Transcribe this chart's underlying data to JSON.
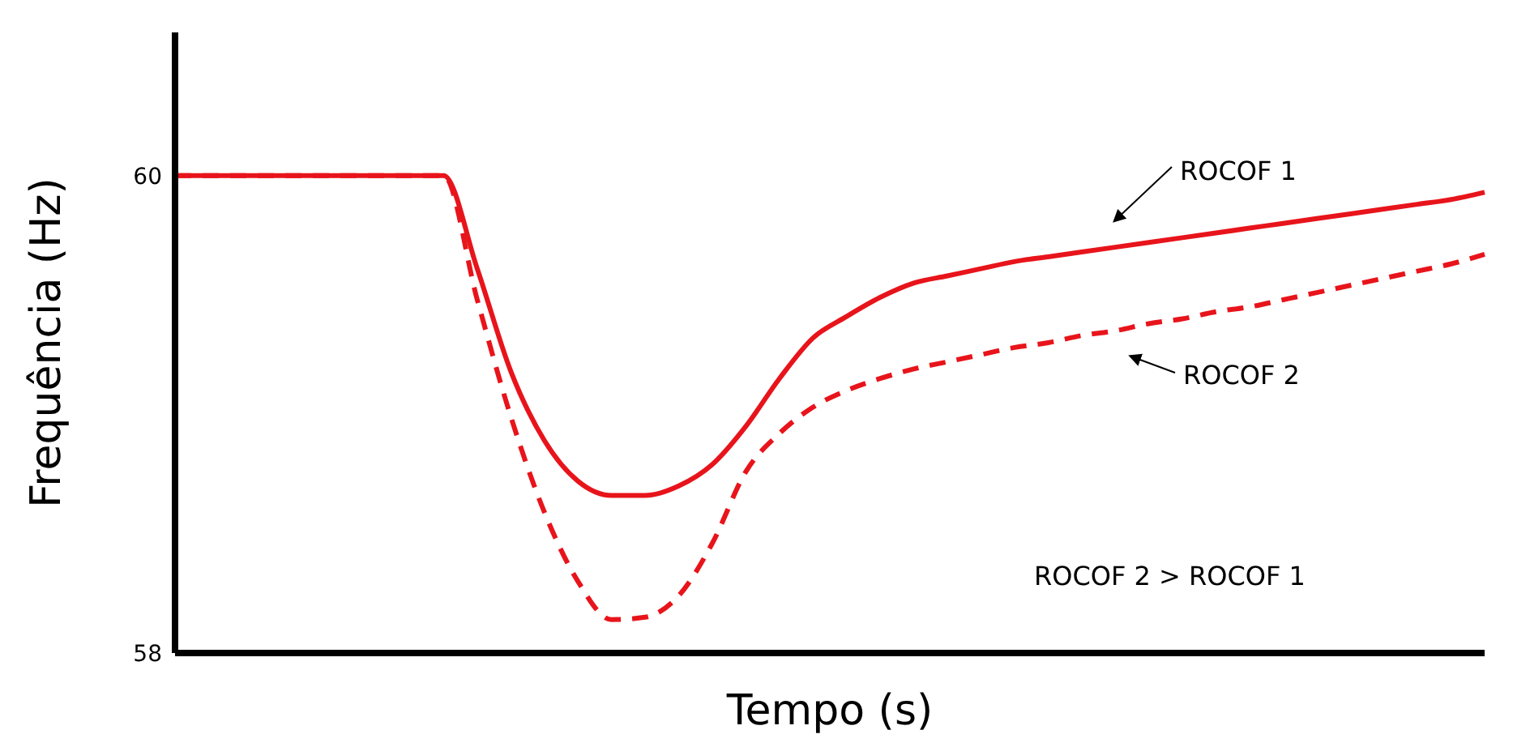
{
  "chart_data": {
    "type": "line",
    "xlabel": "Tempo (s)",
    "ylabel": "Frequência (Hz)",
    "categories": [
      null,
      null,
      null,
      null,
      null,
      null,
      null,
      null,
      null,
      null,
      null,
      null,
      null,
      null,
      null,
      null,
      null,
      null,
      null,
      null,
      null,
      null,
      null,
      null,
      null,
      null,
      null,
      null,
      null,
      null,
      null,
      null,
      null,
      null,
      null,
      null,
      null,
      null,
      null,
      null
    ],
    "series": [
      {
        "name": "ROCOF 1",
        "color": "#e8141b",
        "line_style": "solid",
        "values": [
          60,
          60,
          60,
          60,
          60,
          60,
          60,
          60,
          60,
          59.61,
          59.18,
          58.89,
          58.72,
          58.66,
          58.66,
          58.7,
          58.79,
          58.95,
          59.15,
          59.32,
          59.41,
          59.49,
          59.55,
          59.58,
          59.61,
          59.64,
          59.66,
          59.68,
          59.7,
          59.72,
          59.74,
          59.76,
          59.78,
          59.8,
          59.82,
          59.84,
          59.86,
          59.88,
          59.9,
          59.93
        ]
      },
      {
        "name": "ROCOF 2",
        "color": "#e8141b",
        "line_style": "dashed",
        "values": [
          60,
          60,
          60,
          60,
          60,
          60,
          60,
          60,
          60,
          59.48,
          58.99,
          58.59,
          58.3,
          58.14,
          58.15,
          58.24,
          58.46,
          58.76,
          58.92,
          59.03,
          59.1,
          59.15,
          59.19,
          59.22,
          59.25,
          59.28,
          59.3,
          59.33,
          59.35,
          59.38,
          59.4,
          59.43,
          59.45,
          59.48,
          59.51,
          59.54,
          59.57,
          59.6,
          59.63,
          59.67
        ]
      }
    ],
    "ylim": [
      58,
      60.6
    ],
    "yticks": [
      60,
      58
    ],
    "marker": "none",
    "tick_labels": "y",
    "annotations": [
      "ROCOF 2 > ROCOF 1"
    ]
  }
}
